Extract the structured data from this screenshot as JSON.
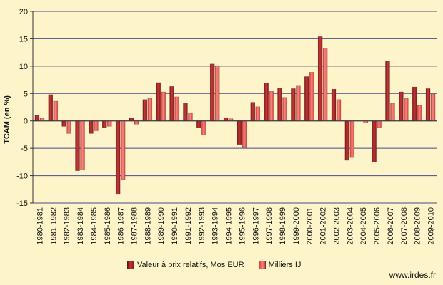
{
  "chart_data": {
    "type": "bar",
    "title": "",
    "xlabel": "",
    "ylabel": "TCAM (en %)",
    "ylim": [
      -15,
      20
    ],
    "yticks": [
      -15,
      -10,
      -5,
      0,
      5,
      10,
      15,
      20
    ],
    "grid": true,
    "legend_position": "bottom",
    "categories": [
      "1980-1981",
      "1981-1982",
      "1982-1983",
      "1983-1984",
      "1984-1985",
      "1985-1986",
      "1986-1987",
      "1987-1988",
      "1988-1989",
      "1989-1990",
      "1990-1991",
      "1991-1992",
      "1992-1993",
      "1993-1994",
      "1994-1995",
      "1995-1996",
      "1996-1997",
      "1997-1998",
      "1998-1999",
      "1999-2000",
      "2000-2001",
      "2001-2002",
      "2002-2003",
      "2003-2004",
      "2004-2005",
      "2005-2006",
      "2006-2007",
      "2007-2008",
      "2008-2009",
      "2009-2010"
    ],
    "series": [
      {
        "name": "Valeur à prix relatifs, Mos EUR",
        "color": "#a3262a",
        "values": [
          1.0,
          4.8,
          -1.0,
          -9.1,
          -2.3,
          -1.2,
          -13.3,
          0.6,
          3.9,
          7.0,
          6.3,
          3.2,
          -1.3,
          10.4,
          0.6,
          -4.3,
          3.4,
          6.9,
          6.0,
          5.9,
          8.1,
          15.4,
          5.8,
          -7.2,
          0.0,
          -7.5,
          10.9,
          5.3,
          6.2,
          5.9
        ]
      },
      {
        "name": "Milliers IJ",
        "color": "#e3554d",
        "values": [
          0.5,
          3.6,
          -2.3,
          -8.9,
          -1.8,
          -1.0,
          -10.7,
          -0.6,
          4.1,
          5.3,
          4.4,
          1.5,
          -2.6,
          10.1,
          0.4,
          -4.9,
          2.6,
          5.4,
          4.3,
          6.5,
          8.9,
          13.2,
          3.9,
          -6.7,
          -0.4,
          -1.2,
          3.2,
          4.1,
          2.8,
          4.9
        ]
      }
    ]
  },
  "watermark": "www.irdes.fr",
  "colors": {
    "background": "#fdf5c9",
    "grid": "#4a4a8a"
  }
}
